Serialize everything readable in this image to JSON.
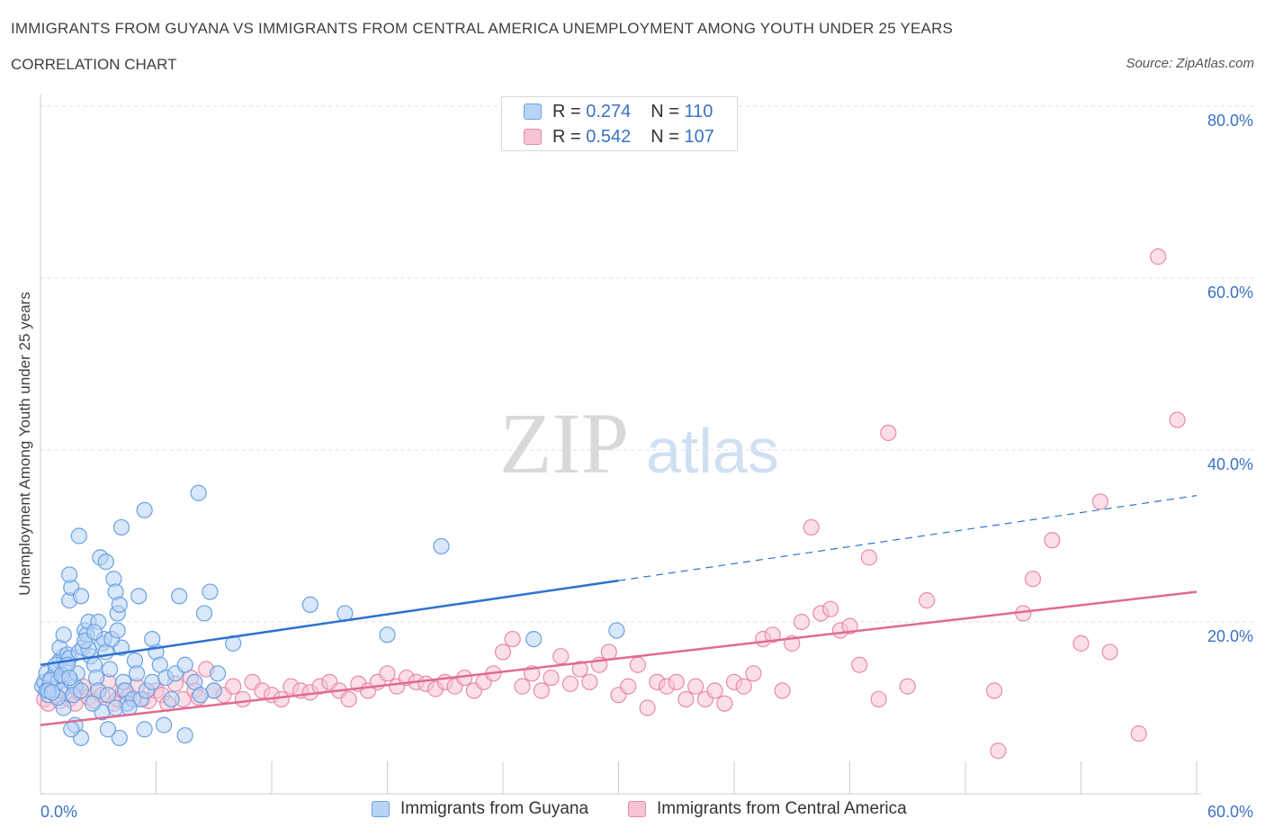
{
  "title": "IMMIGRANTS FROM GUYANA VS IMMIGRANTS FROM CENTRAL AMERICA UNEMPLOYMENT AMONG YOUTH UNDER 25 YEARS",
  "subtitle": "CORRELATION CHART",
  "source": "Source: ZipAtlas.com",
  "watermark": {
    "zip": "ZIP",
    "atlas": "atlas"
  },
  "legend": {
    "r_label": "R =",
    "n_label": "N =",
    "rows": [
      {
        "r": "0.274",
        "n": "110"
      },
      {
        "r": "0.542",
        "n": "107"
      }
    ]
  },
  "colors": {
    "blue_fill": "#b8d4f5",
    "blue_stroke": "#6aa1e0",
    "blue_line": "#2f72d0",
    "pink_fill": "#f7c4d4",
    "pink_stroke": "#e88aa8",
    "pink_line": "#e06a94",
    "axis_text": "#3a72c4",
    "grid": "#dddddd"
  },
  "chart_data": {
    "type": "scatter",
    "title": "IMMIGRANTS FROM GUYANA VS IMMIGRANTS FROM CENTRAL AMERICA UNEMPLOYMENT AMONG YOUTH UNDER 25 YEARS",
    "xlabel": "",
    "ylabel": "Unemployment Among Youth under 25 years",
    "xlim": [
      0,
      60
    ],
    "ylim": [
      0,
      80
    ],
    "x_tick_labels": [
      "0.0%",
      "60.0%"
    ],
    "y_ticks": [
      20,
      40,
      60,
      80
    ],
    "y_tick_labels": [
      "20.0%",
      "40.0%",
      "60.0%",
      "80.0%"
    ],
    "grid": true,
    "legend_position": "top-center",
    "series": [
      {
        "name": "Immigrants from Guyana",
        "r": 0.274,
        "n": 110,
        "trend": {
          "x": [
            0,
            30
          ],
          "y": [
            15.0,
            24.8
          ],
          "dashed_to": [
            60,
            34.7
          ]
        },
        "points": [
          [
            0.1,
            12.5
          ],
          [
            0.2,
            13.0
          ],
          [
            0.3,
            12.0
          ],
          [
            0.4,
            11.5
          ],
          [
            0.5,
            12.8
          ],
          [
            0.3,
            14.0
          ],
          [
            0.6,
            13.5
          ],
          [
            0.7,
            12.2
          ],
          [
            0.8,
            14.5
          ],
          [
            0.9,
            13.0
          ],
          [
            1.0,
            15.5
          ],
          [
            1.1,
            12.0
          ],
          [
            1.2,
            16.0
          ],
          [
            0.5,
            13.2
          ],
          [
            0.8,
            15.0
          ],
          [
            1.3,
            14.8
          ],
          [
            1.0,
            17.0
          ],
          [
            1.2,
            18.5
          ],
          [
            1.4,
            16.2
          ],
          [
            1.5,
            15.8
          ],
          [
            1.6,
            13.0
          ],
          [
            1.8,
            12.5
          ],
          [
            1.9,
            14.0
          ],
          [
            1.7,
            11.5
          ],
          [
            2.0,
            16.5
          ],
          [
            2.1,
            12.0
          ],
          [
            2.2,
            17.0
          ],
          [
            2.3,
            19.0
          ],
          [
            2.4,
            18.5
          ],
          [
            2.5,
            20.0
          ],
          [
            2.6,
            16.0
          ],
          [
            2.8,
            15.0
          ],
          [
            2.9,
            13.5
          ],
          [
            3.0,
            12.0
          ],
          [
            3.2,
            17.5
          ],
          [
            3.3,
            18.0
          ],
          [
            3.4,
            16.5
          ],
          [
            3.5,
            11.5
          ],
          [
            2.0,
            30.0
          ],
          [
            1.5,
            22.5
          ],
          [
            1.6,
            24.0
          ],
          [
            1.5,
            25.5
          ],
          [
            2.1,
            23.0
          ],
          [
            2.5,
            16.8
          ],
          [
            3.0,
            20.0
          ],
          [
            3.1,
            27.5
          ],
          [
            3.4,
            27.0
          ],
          [
            3.8,
            25.0
          ],
          [
            3.9,
            23.5
          ],
          [
            4.0,
            21.0
          ],
          [
            4.1,
            22.0
          ],
          [
            4.2,
            17.0
          ],
          [
            3.6,
            14.5
          ],
          [
            4.3,
            13.0
          ],
          [
            4.4,
            12.0
          ],
          [
            4.5,
            10.5
          ],
          [
            4.8,
            11.0
          ],
          [
            4.9,
            15.5
          ],
          [
            5.0,
            14.0
          ],
          [
            5.2,
            11.0
          ],
          [
            5.5,
            12.0
          ],
          [
            5.8,
            13.0
          ],
          [
            6.0,
            16.5
          ],
          [
            6.2,
            15.0
          ],
          [
            6.5,
            13.5
          ],
          [
            7.0,
            14.0
          ],
          [
            7.2,
            23.0
          ],
          [
            7.5,
            15.0
          ],
          [
            8.0,
            13.0
          ],
          [
            8.5,
            21.0
          ],
          [
            8.8,
            23.5
          ],
          [
            9.0,
            12.0
          ],
          [
            9.2,
            14.0
          ],
          [
            10.0,
            17.5
          ],
          [
            4.2,
            31.0
          ],
          [
            5.4,
            33.0
          ],
          [
            8.2,
            35.0
          ],
          [
            5.4,
            7.5
          ],
          [
            4.1,
            6.5
          ],
          [
            3.5,
            7.5
          ],
          [
            2.1,
            6.5
          ],
          [
            1.8,
            8.0
          ],
          [
            1.6,
            7.5
          ],
          [
            3.2,
            9.5
          ],
          [
            3.9,
            10.0
          ],
          [
            4.6,
            10.0
          ],
          [
            6.4,
            8.0
          ],
          [
            7.5,
            6.8
          ],
          [
            8.3,
            11.5
          ],
          [
            6.8,
            11.0
          ],
          [
            2.7,
            10.5
          ],
          [
            1.2,
            10.0
          ],
          [
            0.9,
            11.2
          ],
          [
            0.4,
            12.0
          ],
          [
            0.6,
            11.8
          ],
          [
            1.1,
            13.8
          ],
          [
            1.4,
            15.0
          ],
          [
            2.3,
            17.8
          ],
          [
            2.8,
            18.8
          ],
          [
            3.7,
            18.0
          ],
          [
            4.0,
            19.0
          ],
          [
            5.1,
            23.0
          ],
          [
            5.8,
            18.0
          ],
          [
            14.0,
            22.0
          ],
          [
            15.8,
            21.0
          ],
          [
            18.0,
            18.5
          ],
          [
            20.8,
            28.8
          ],
          [
            25.6,
            18.0
          ],
          [
            29.9,
            19.0
          ],
          [
            1.5,
            13.5
          ]
        ]
      },
      {
        "name": "Immigrants from Central America",
        "r": 0.542,
        "n": 107,
        "trend": {
          "x": [
            0,
            60
          ],
          "y": [
            8.0,
            23.5
          ]
        },
        "points": [
          [
            0.2,
            11.0
          ],
          [
            0.4,
            10.5
          ],
          [
            0.6,
            12.0
          ],
          [
            0.8,
            11.5
          ],
          [
            1.0,
            10.8
          ],
          [
            1.2,
            12.2
          ],
          [
            1.5,
            11.0
          ],
          [
            1.8,
            10.5
          ],
          [
            2.0,
            11.8
          ],
          [
            2.2,
            12.5
          ],
          [
            2.5,
            11.2
          ],
          [
            2.8,
            10.8
          ],
          [
            3.0,
            12.0
          ],
          [
            3.2,
            11.5
          ],
          [
            3.5,
            13.0
          ],
          [
            3.8,
            10.5
          ],
          [
            4.0,
            11.0
          ],
          [
            4.3,
            12.0
          ],
          [
            4.6,
            11.5
          ],
          [
            5.0,
            12.5
          ],
          [
            5.3,
            11.0
          ],
          [
            5.6,
            10.8
          ],
          [
            6.0,
            12.0
          ],
          [
            6.3,
            11.5
          ],
          [
            6.6,
            10.5
          ],
          [
            7.0,
            12.8
          ],
          [
            7.4,
            11.0
          ],
          [
            7.8,
            13.5
          ],
          [
            8.0,
            12.0
          ],
          [
            8.2,
            11.2
          ],
          [
            8.6,
            14.5
          ],
          [
            9.0,
            12.0
          ],
          [
            9.5,
            11.5
          ],
          [
            10.0,
            12.5
          ],
          [
            10.5,
            11.0
          ],
          [
            11.0,
            13.0
          ],
          [
            11.5,
            12.0
          ],
          [
            12.0,
            11.5
          ],
          [
            12.5,
            11.0
          ],
          [
            13.0,
            12.5
          ],
          [
            13.5,
            12.0
          ],
          [
            14.0,
            11.8
          ],
          [
            14.5,
            12.5
          ],
          [
            15.0,
            13.0
          ],
          [
            15.5,
            12.0
          ],
          [
            16.0,
            11.0
          ],
          [
            16.5,
            12.8
          ],
          [
            17.0,
            12.0
          ],
          [
            17.5,
            13.0
          ],
          [
            18.0,
            14.0
          ],
          [
            18.5,
            12.5
          ],
          [
            19.0,
            13.5
          ],
          [
            19.5,
            13.0
          ],
          [
            20.0,
            12.8
          ],
          [
            20.5,
            12.2
          ],
          [
            21.0,
            13.0
          ],
          [
            21.5,
            12.5
          ],
          [
            22.0,
            13.5
          ],
          [
            22.5,
            12.0
          ],
          [
            23.0,
            13.0
          ],
          [
            23.5,
            14.0
          ],
          [
            24.0,
            16.5
          ],
          [
            24.5,
            18.0
          ],
          [
            25.0,
            12.5
          ],
          [
            25.5,
            14.0
          ],
          [
            26.0,
            12.0
          ],
          [
            26.5,
            13.5
          ],
          [
            27.0,
            16.0
          ],
          [
            27.5,
            12.8
          ],
          [
            28.0,
            14.5
          ],
          [
            28.5,
            13.0
          ],
          [
            29.0,
            15.0
          ],
          [
            29.5,
            16.5
          ],
          [
            30.0,
            11.5
          ],
          [
            30.5,
            12.5
          ],
          [
            31.0,
            15.0
          ],
          [
            31.5,
            10.0
          ],
          [
            32.0,
            13.0
          ],
          [
            32.5,
            12.5
          ],
          [
            33.0,
            13.0
          ],
          [
            33.5,
            11.0
          ],
          [
            34.0,
            12.5
          ],
          [
            34.5,
            11.0
          ],
          [
            35.0,
            12.0
          ],
          [
            35.5,
            10.5
          ],
          [
            36.0,
            13.0
          ],
          [
            36.5,
            12.5
          ],
          [
            37.0,
            14.0
          ],
          [
            37.5,
            18.0
          ],
          [
            38.0,
            18.5
          ],
          [
            38.5,
            12.0
          ],
          [
            39.0,
            17.5
          ],
          [
            39.5,
            20.0
          ],
          [
            40.0,
            31.0
          ],
          [
            40.5,
            21.0
          ],
          [
            41.0,
            21.5
          ],
          [
            41.5,
            19.0
          ],
          [
            42.0,
            19.5
          ],
          [
            42.5,
            15.0
          ],
          [
            43.0,
            27.5
          ],
          [
            43.5,
            11.0
          ],
          [
            44.0,
            42.0
          ],
          [
            45.0,
            12.5
          ],
          [
            46.0,
            22.5
          ],
          [
            49.5,
            12.0
          ],
          [
            55.0,
            34.0
          ],
          [
            58.0,
            62.5
          ]
        ],
        "extra_points": [
          [
            49.7,
            5.0
          ],
          [
            51.0,
            21.0
          ],
          [
            51.5,
            25.0
          ],
          [
            52.5,
            29.5
          ],
          [
            54.0,
            17.5
          ],
          [
            55.5,
            16.5
          ],
          [
            57.0,
            7.0
          ],
          [
            59.0,
            43.5
          ]
        ]
      }
    ]
  },
  "bottom_legend": [
    "Immigrants from Guyana",
    "Immigrants from Central America"
  ]
}
